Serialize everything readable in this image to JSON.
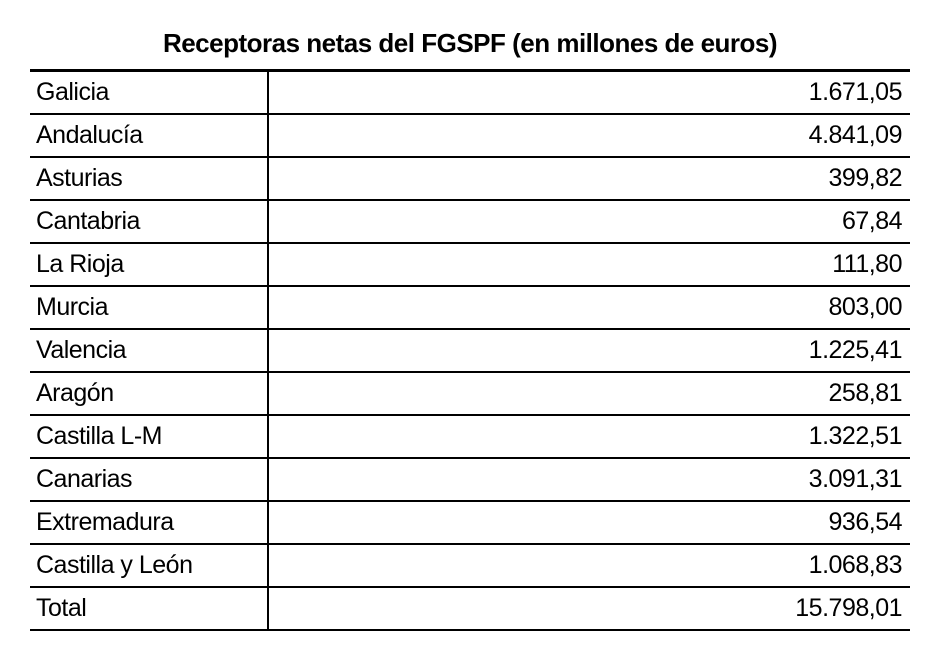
{
  "table": {
    "title": "Receptoras netas del FGSPF (en millones de euros)",
    "title_fontsize": 26,
    "title_fontweight": "bold",
    "cell_fontsize": 25,
    "text_color": "#000000",
    "background_color": "#ffffff",
    "border_color": "#000000",
    "border_top_width": 3,
    "row_border_width": 2,
    "column_widths": [
      "27%",
      "73%"
    ],
    "alignments": [
      "left",
      "right"
    ],
    "rows": [
      {
        "region": "Galicia",
        "value": "1.671,05"
      },
      {
        "region": "Andalucía",
        "value": "4.841,09"
      },
      {
        "region": "Asturias",
        "value": "399,82"
      },
      {
        "region": "Cantabria",
        "value": "67,84"
      },
      {
        "region": "La Rioja",
        "value": "111,80"
      },
      {
        "region": "Murcia",
        "value": "803,00"
      },
      {
        "region": "Valencia",
        "value": "1.225,41"
      },
      {
        "region": "Aragón",
        "value": "258,81"
      },
      {
        "region": "Castilla L-M",
        "value": "1.322,51"
      },
      {
        "region": "Canarias",
        "value": "3.091,31"
      },
      {
        "region": "Extremadura",
        "value": "936,54"
      },
      {
        "region": "Castilla y León",
        "value": "1.068,83"
      },
      {
        "region": "Total",
        "value": "15.798,01"
      }
    ]
  }
}
